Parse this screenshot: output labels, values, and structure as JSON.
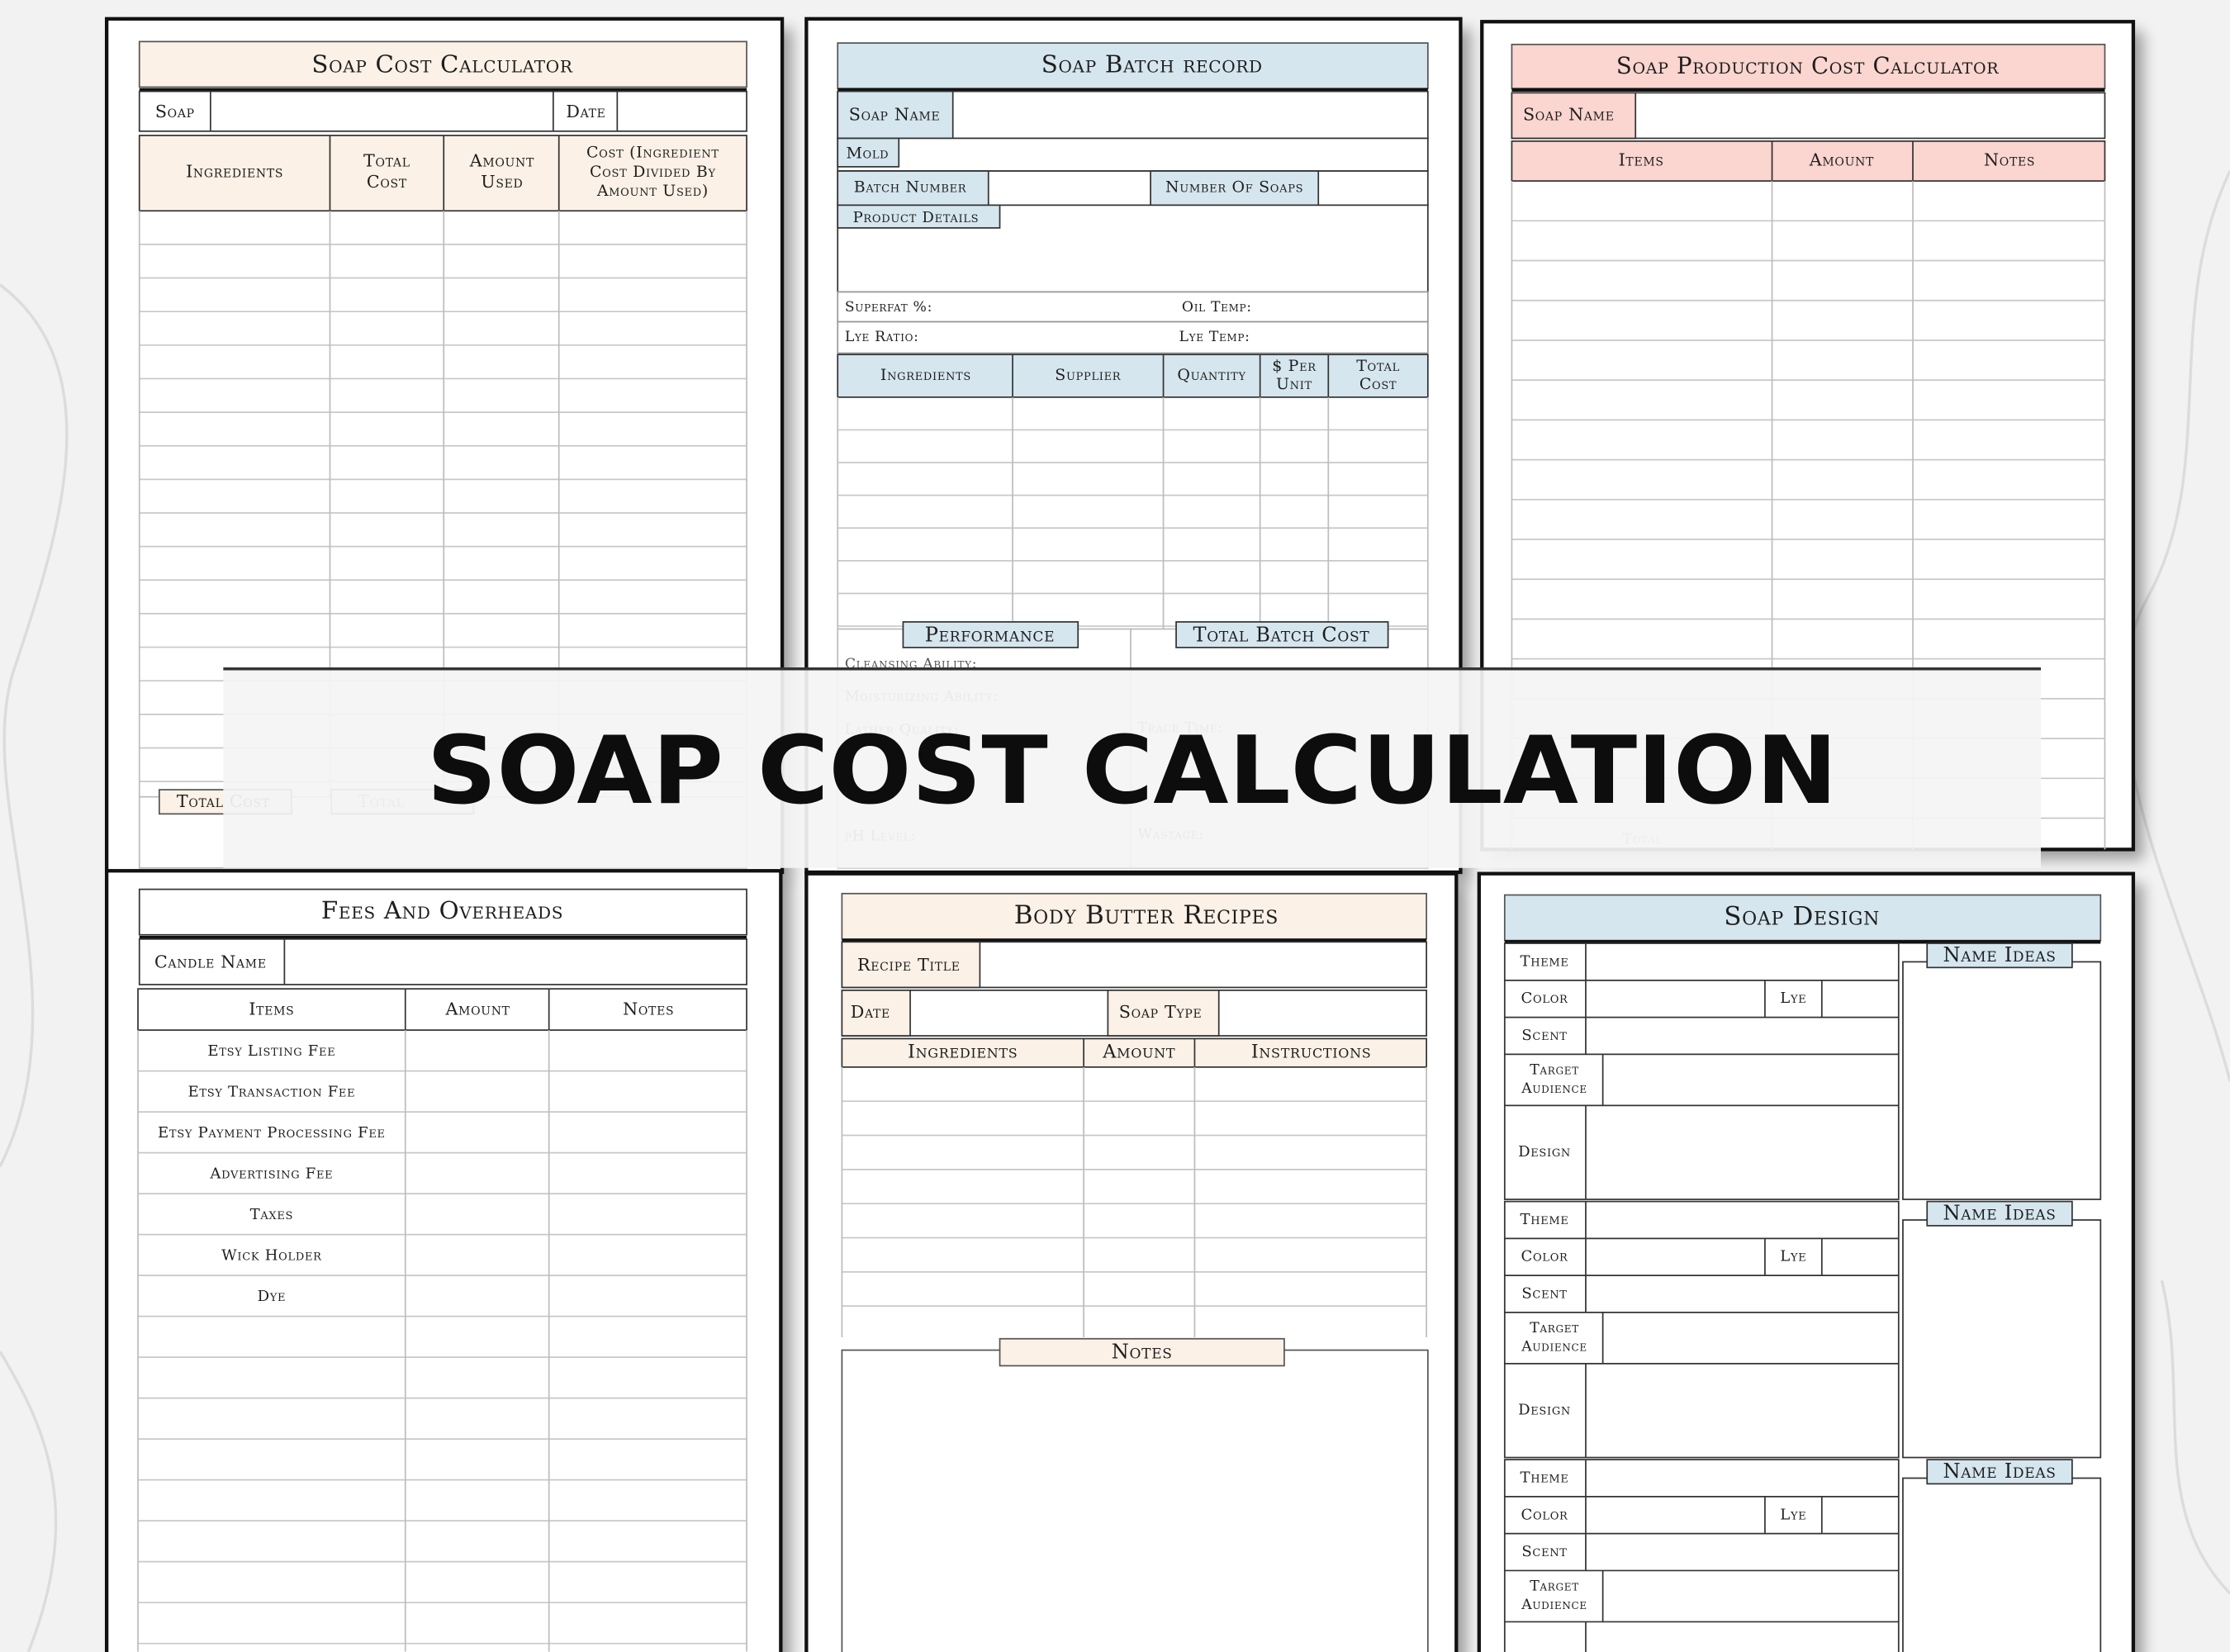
{
  "banner": {
    "title": "SOAP COST CALCULATION"
  },
  "sheets": [
    {
      "title": "Soap Cost Calculator",
      "fields": [
        "Soap",
        "Date"
      ],
      "columns": [
        [
          "Ingredients"
        ],
        [
          "Total",
          "Cost"
        ],
        [
          "Amount",
          "Used"
        ],
        [
          "Cost (Ingredient",
          "Cost Divided By",
          "Amount Used)"
        ]
      ],
      "footer": [
        "Total Cost",
        "Total"
      ]
    },
    {
      "title": "Soap Batch record",
      "fields": [
        "Soap Name",
        "Mold",
        "Batch Number",
        "Number Of Soaps",
        "Product Details",
        "Superfat %:",
        "Oil Temp:",
        "Lye Ratio:",
        "Lye Temp:"
      ],
      "columns": [
        [
          "Ingredients"
        ],
        [
          "Supplier"
        ],
        [
          "Quantity"
        ],
        [
          "$ Per",
          "Unit"
        ],
        [
          "Total",
          "Cost"
        ]
      ],
      "sections": [
        "Performance",
        "Total Batch Cost"
      ],
      "performance_fields": [
        "Cleansing Ability:",
        "Moisturizing Ability:",
        "Lather Quality:",
        "Trace Time:",
        "pH Level:",
        "Wastage:"
      ]
    },
    {
      "title": "Soap Production Cost Calculator",
      "fields": [
        "Soap Name"
      ],
      "columns": [
        [
          "Items"
        ],
        [
          "Amount"
        ],
        [
          "Notes"
        ]
      ],
      "footer": [
        "Total"
      ]
    },
    {
      "title": "Fees And Overheads",
      "fields": [
        "Candle Name"
      ],
      "columns": [
        [
          "Items"
        ],
        [
          "Amount"
        ],
        [
          "Notes"
        ]
      ],
      "items": [
        "Etsy Listing Fee",
        "Etsy Transaction Fee",
        "Etsy Payment Processing Fee",
        "Advertising Fee",
        "Taxes",
        "Wick Holder",
        "Dye"
      ]
    },
    {
      "title": "Body Butter Recipes",
      "fields": [
        "Recipe Title",
        "Date",
        "Soap Type"
      ],
      "columns": [
        [
          "Ingredients"
        ],
        [
          "Amount"
        ],
        [
          "Instructions"
        ]
      ],
      "sections": [
        "Notes"
      ]
    },
    {
      "title": "Soap Design",
      "blocks": [
        {
          "theme": "Theme",
          "color": "Color",
          "lye": "Lye",
          "scent": "Scent",
          "target_audience": [
            "Target",
            "Audience"
          ],
          "design": "Design",
          "name_ideas": "Name Ideas"
        },
        {
          "theme": "Theme",
          "color": "Color",
          "lye": "Lye",
          "scent": "Scent",
          "target_audience": [
            "Target",
            "Audience"
          ],
          "design": "Design",
          "name_ideas": "Name Ideas"
        },
        {
          "theme": "Theme",
          "color": "Color",
          "lye": "Lye",
          "scent": "Scent",
          "target_audience": [
            "Target",
            "Audience"
          ],
          "name_ideas": "Name Ideas"
        }
      ]
    }
  ]
}
